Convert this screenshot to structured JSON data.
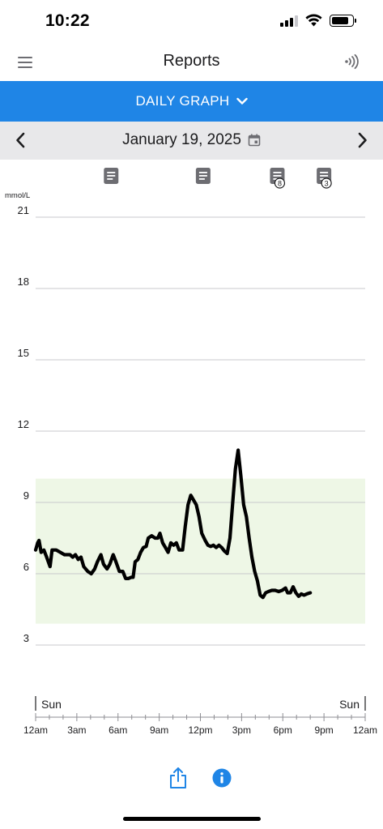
{
  "status_bar": {
    "time": "10:22"
  },
  "header": {
    "title": "Reports",
    "menu_icon": "hamburger-menu-icon",
    "scan_icon": "nfc-scan-icon"
  },
  "view_selector": {
    "label": "DAILY GRAPH",
    "icon": "chevron-down-icon"
  },
  "date_nav": {
    "date": "January 19, 2025",
    "prev_icon": "chevron-left-icon",
    "next_icon": "chevron-right-icon",
    "calendar_icon": "calendar-icon"
  },
  "colors": {
    "accent": "#1f85e6",
    "target_range": "#eef7e6",
    "line": "#000000"
  },
  "chart_data": {
    "type": "line",
    "ylabel": "mmol/L",
    "ylim": [
      0,
      21
    ],
    "yticks": [
      3,
      6,
      9,
      12,
      15,
      18,
      21
    ],
    "grid": true,
    "target_range": [
      3.9,
      10.0
    ],
    "xlim": [
      0,
      24
    ],
    "xticks": [
      {
        "hour": 0,
        "label": "12am"
      },
      {
        "hour": 3,
        "label": "3am"
      },
      {
        "hour": 6,
        "label": "6am"
      },
      {
        "hour": 9,
        "label": "9am"
      },
      {
        "hour": 12,
        "label": "12pm"
      },
      {
        "hour": 15,
        "label": "3pm"
      },
      {
        "hour": 18,
        "label": "6pm"
      },
      {
        "hour": 21,
        "label": "9pm"
      },
      {
        "hour": 24,
        "label": "12am"
      }
    ],
    "day_labels": {
      "start": "Sun",
      "end": "Sun"
    },
    "notes": [
      {
        "hour": 5.5,
        "count": null
      },
      {
        "hour": 12.2,
        "count": null
      },
      {
        "hour": 17.6,
        "count": "8"
      },
      {
        "hour": 21.0,
        "count": "3"
      }
    ],
    "series": [
      {
        "points": [
          [
            0.0,
            7.0
          ],
          [
            0.15,
            7.3
          ],
          [
            0.25,
            7.4
          ],
          [
            0.4,
            6.9
          ],
          [
            0.6,
            7.0
          ],
          [
            0.8,
            6.7
          ],
          [
            1.05,
            6.3
          ],
          [
            1.2,
            7.0
          ],
          [
            1.5,
            7.0
          ],
          [
            1.8,
            6.9
          ],
          [
            2.1,
            6.8
          ],
          [
            2.3,
            6.8
          ],
          [
            2.5,
            6.8
          ],
          [
            2.7,
            6.7
          ],
          [
            2.9,
            6.8
          ],
          [
            3.1,
            6.6
          ],
          [
            3.3,
            6.7
          ],
          [
            3.5,
            6.3
          ],
          [
            3.8,
            6.1
          ],
          [
            4.05,
            6.0
          ],
          [
            4.3,
            6.2
          ],
          [
            4.5,
            6.5
          ],
          [
            4.75,
            6.8
          ],
          [
            4.95,
            6.4
          ],
          [
            5.2,
            6.2
          ],
          [
            5.4,
            6.4
          ],
          [
            5.65,
            6.8
          ],
          [
            5.85,
            6.5
          ],
          [
            6.1,
            6.1
          ],
          [
            6.35,
            6.1
          ],
          [
            6.55,
            5.8
          ],
          [
            6.75,
            5.8
          ],
          [
            6.95,
            5.85
          ],
          [
            7.1,
            5.85
          ],
          [
            7.25,
            6.5
          ],
          [
            7.45,
            6.6
          ],
          [
            7.65,
            6.9
          ],
          [
            7.85,
            7.1
          ],
          [
            8.05,
            7.15
          ],
          [
            8.2,
            7.5
          ],
          [
            8.45,
            7.6
          ],
          [
            8.7,
            7.5
          ],
          [
            8.9,
            7.5
          ],
          [
            9.05,
            7.7
          ],
          [
            9.25,
            7.3
          ],
          [
            9.45,
            7.1
          ],
          [
            9.65,
            6.9
          ],
          [
            9.85,
            7.3
          ],
          [
            10.05,
            7.2
          ],
          [
            10.25,
            7.3
          ],
          [
            10.45,
            7.0
          ],
          [
            10.7,
            7.0
          ],
          [
            10.9,
            8.0
          ],
          [
            11.1,
            8.9
          ],
          [
            11.3,
            9.3
          ],
          [
            11.5,
            9.1
          ],
          [
            11.7,
            8.9
          ],
          [
            11.9,
            8.4
          ],
          [
            12.1,
            7.7
          ],
          [
            12.35,
            7.4
          ],
          [
            12.55,
            7.2
          ],
          [
            12.75,
            7.15
          ],
          [
            12.95,
            7.2
          ],
          [
            13.15,
            7.1
          ],
          [
            13.35,
            7.2
          ],
          [
            13.55,
            7.1
          ],
          [
            13.75,
            6.95
          ],
          [
            13.95,
            6.85
          ],
          [
            14.15,
            7.5
          ],
          [
            14.35,
            9.0
          ],
          [
            14.55,
            10.4
          ],
          [
            14.75,
            11.2
          ],
          [
            14.95,
            10.1
          ],
          [
            15.15,
            8.9
          ],
          [
            15.35,
            8.4
          ],
          [
            15.55,
            7.5
          ],
          [
            15.75,
            6.7
          ],
          [
            15.95,
            6.1
          ],
          [
            16.15,
            5.7
          ],
          [
            16.35,
            5.1
          ],
          [
            16.55,
            5.0
          ],
          [
            16.75,
            5.2
          ],
          [
            16.95,
            5.25
          ],
          [
            17.2,
            5.3
          ],
          [
            17.45,
            5.3
          ],
          [
            17.7,
            5.25
          ],
          [
            17.95,
            5.3
          ],
          [
            18.2,
            5.4
          ],
          [
            18.35,
            5.2
          ],
          [
            18.55,
            5.2
          ],
          [
            18.75,
            5.45
          ],
          [
            18.95,
            5.2
          ],
          [
            19.15,
            5.05
          ],
          [
            19.35,
            5.15
          ],
          [
            19.55,
            5.1
          ],
          [
            19.75,
            5.15
          ],
          [
            20.0,
            5.2
          ]
        ]
      }
    ]
  }
}
